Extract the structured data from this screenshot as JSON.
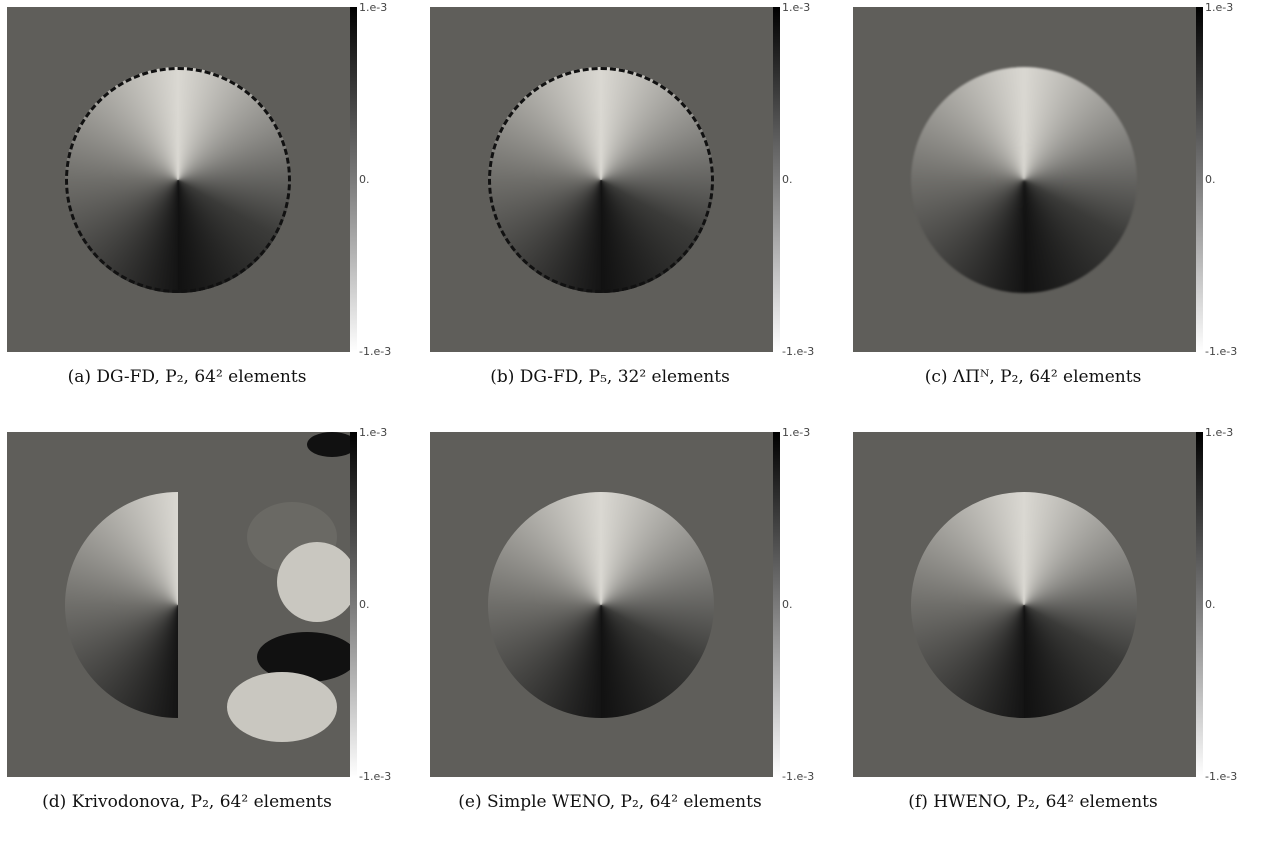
{
  "colorbar": {
    "max": "1.e-3",
    "mid": "0.",
    "min": "-1.e-3"
  },
  "panels": [
    {
      "caption": "(a) DG-FD, P₂, 64² elements"
    },
    {
      "caption": "(b) DG-FD, P₅, 32² elements"
    },
    {
      "caption": "(c) ΛΠᴺ, P₂, 64² elements"
    },
    {
      "caption": "(d) Krivodonova, P₂, 64² elements"
    },
    {
      "caption": "(e) Simple WENO, P₂, 64² elements"
    },
    {
      "caption": "(f) HWENO, P₂, 64² elements"
    }
  ]
}
